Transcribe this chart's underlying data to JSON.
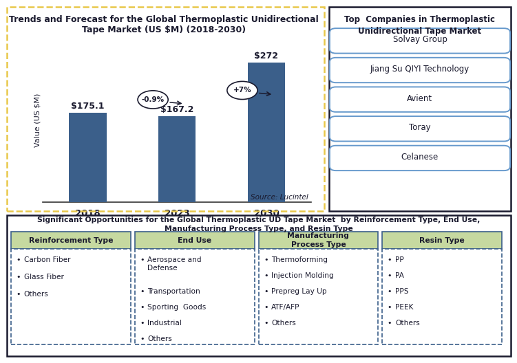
{
  "chart_title": "Trends and Forecast for the Global Thermoplastic Unidirectional\nTape Market (US $M) (2018-2030)",
  "bar_years": [
    "2018",
    "2023",
    "2030"
  ],
  "bar_values": [
    175.1,
    167.2,
    272.0
  ],
  "bar_labels": [
    "$175.1",
    "$167.2",
    "$272"
  ],
  "bar_color": "#3B5F8A",
  "ylabel": "Value (US $M)",
  "source_text": "Source: Lucintel",
  "cagr_labels": [
    "-0.9%",
    "+7%"
  ],
  "top_companies_title": "Top  Companies in Thermoplastic\nUnidirectional Tape Market",
  "top_companies": [
    "Solvay Group",
    "Jiang Su QIYI Technology",
    "Avient",
    "Toray",
    "Celanese"
  ],
  "bottom_title": "Significant Opportunities for the Global Thermoplastic UD Tape Market  by Reinforcement Type, End Use,\nManufacturing Process Type, and Resin Type",
  "col_headers": [
    "Reinforcement Type",
    "End Use",
    "Manufacturing\nProcess Type",
    "Resin Type"
  ],
  "col_items": [
    [
      "Carbon Fiber",
      "Glass Fiber",
      "Others"
    ],
    [
      "Aerospace and\nDefense",
      "Transportation",
      "Sporting  Goods",
      "Industrial",
      "Others"
    ],
    [
      "Thermoforming",
      "Injection Molding",
      "Prepreg Lay Up",
      "ATF/AFP",
      "Others"
    ],
    [
      "PP",
      "PA",
      "PPS",
      "PEEK",
      "Others"
    ]
  ],
  "header_bg": "#C6D9A0",
  "col_border_color": "#3B5F8A",
  "dashed_border_color": "#E8C84A",
  "right_panel_border": "#1a1a2e",
  "company_box_border": "#6699CC",
  "bar_ylim": [
    0,
    320
  ],
  "fig_width": 7.49,
  "fig_height": 5.2,
  "fig_dpi": 100
}
